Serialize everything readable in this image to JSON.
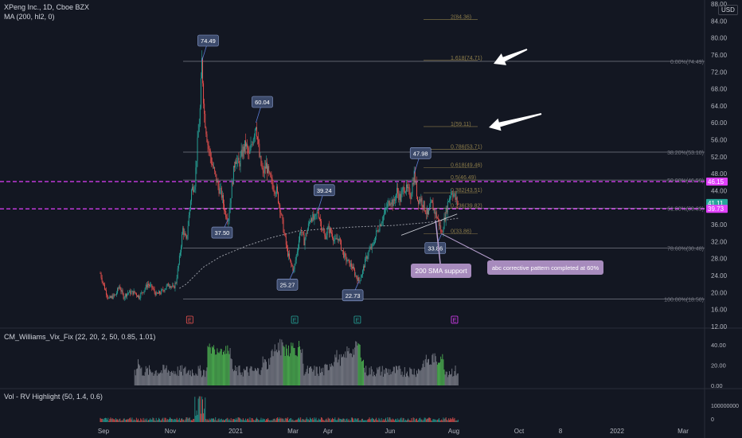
{
  "header": {
    "symbol_line": "XPeng Inc., 1D, Cboe BZX",
    "ma_line": "MA (200, hl2, 0)",
    "currency": "USD"
  },
  "panes": {
    "vix_label": "CM_Williams_Vix_Fix (22, 20, 2, 50, 0.85, 1.01)",
    "vol_label": "Vol - RV Highlight (50, 1.4, 0.6)"
  },
  "colors": {
    "up": "#26a69a",
    "down": "#ef5350",
    "magenta": "#e040fb",
    "vix_high": "#4caf50",
    "vix_normal": "#787b86",
    "ma": "#9598a1"
  },
  "chart_data": {
    "type": "line",
    "title": "XPeng Inc., 1D, Cboe BZX",
    "ylim": [
      12,
      88
    ],
    "y_ticks": [
      "88.00",
      "84.00",
      "80.00",
      "76.00",
      "72.00",
      "68.00",
      "64.00",
      "60.00",
      "56.00",
      "52.00",
      "48.00",
      "44.00",
      "40.00",
      "36.00",
      "32.00",
      "28.00",
      "24.00",
      "20.00",
      "16.00",
      "12.00"
    ],
    "x_ticks": [
      "Sep",
      "Nov",
      "2021",
      "Mar",
      "Apr",
      "Jun",
      "Aug",
      "Oct",
      "8",
      "2022",
      "Mar"
    ],
    "price_path": [
      [
        0,
        24.5
      ],
      [
        5,
        21
      ],
      [
        10,
        18.5
      ],
      [
        18,
        19.5
      ],
      [
        22,
        21.5
      ],
      [
        27,
        19
      ],
      [
        32,
        20
      ],
      [
        40,
        20
      ],
      [
        45,
        19
      ],
      [
        52,
        21
      ],
      [
        55,
        22
      ],
      [
        60,
        21.2
      ],
      [
        65,
        19.5
      ],
      [
        70,
        20
      ],
      [
        75,
        21
      ],
      [
        80,
        22
      ],
      [
        85,
        21
      ],
      [
        88,
        22.5
      ],
      [
        92,
        28
      ],
      [
        96,
        35
      ],
      [
        100,
        32
      ],
      [
        103,
        38
      ],
      [
        106,
        44
      ],
      [
        110,
        46
      ],
      [
        113,
        55
      ],
      [
        116,
        63
      ],
      [
        118,
        74.49
      ],
      [
        121,
        62
      ],
      [
        125,
        55
      ],
      [
        129,
        51
      ],
      [
        133,
        48
      ],
      [
        137,
        45
      ],
      [
        141,
        43
      ],
      [
        145,
        39
      ],
      [
        149,
        37.5
      ],
      [
        153,
        45
      ],
      [
        157,
        52
      ],
      [
        161,
        50
      ],
      [
        165,
        53
      ],
      [
        169,
        55
      ],
      [
        173,
        52
      ],
      [
        177,
        56
      ],
      [
        181,
        60.04
      ],
      [
        185,
        52
      ],
      [
        189,
        48
      ],
      [
        193,
        50
      ],
      [
        197,
        47
      ],
      [
        201,
        45
      ],
      [
        205,
        44
      ],
      [
        209,
        40
      ],
      [
        213,
        35
      ],
      [
        217,
        30
      ],
      [
        221,
        27
      ],
      [
        225,
        25.27
      ],
      [
        229,
        30
      ],
      [
        233,
        35
      ],
      [
        237,
        32
      ],
      [
        241,
        35
      ],
      [
        245,
        38
      ],
      [
        249,
        37
      ],
      [
        253,
        39.24
      ],
      [
        257,
        36
      ],
      [
        261,
        33
      ],
      [
        265,
        35
      ],
      [
        269,
        34
      ],
      [
        273,
        32
      ],
      [
        277,
        33
      ],
      [
        281,
        30
      ],
      [
        285,
        28
      ],
      [
        289,
        27
      ],
      [
        293,
        26
      ],
      [
        297,
        24
      ],
      [
        301,
        22.73
      ],
      [
        305,
        25
      ],
      [
        309,
        28
      ],
      [
        313,
        30
      ],
      [
        317,
        31
      ],
      [
        321,
        34
      ],
      [
        325,
        36
      ],
      [
        329,
        38
      ],
      [
        333,
        40
      ],
      [
        337,
        42
      ],
      [
        341,
        41
      ],
      [
        345,
        44
      ],
      [
        349,
        42
      ],
      [
        353,
        45
      ],
      [
        357,
        44
      ],
      [
        361,
        43
      ],
      [
        365,
        47.98
      ],
      [
        369,
        42
      ],
      [
        373,
        42
      ],
      [
        377,
        40
      ],
      [
        381,
        38
      ],
      [
        385,
        41
      ],
      [
        389,
        39
      ],
      [
        393,
        37
      ],
      [
        397,
        33.86
      ],
      [
        401,
        38
      ],
      [
        405,
        42
      ],
      [
        409,
        44
      ],
      [
        413,
        42
      ],
      [
        416,
        41.11
      ]
    ],
    "ma200": [
      [
        92,
        21
      ],
      [
        100,
        22
      ],
      [
        110,
        24
      ],
      [
        120,
        26
      ],
      [
        140,
        28.5
      ],
      [
        170,
        31
      ],
      [
        200,
        33
      ],
      [
        230,
        34.5
      ],
      [
        260,
        35
      ],
      [
        300,
        35.5
      ],
      [
        340,
        35.8
      ],
      [
        380,
        36.5
      ],
      [
        416,
        37.5
      ]
    ],
    "peak_labels": [
      {
        "x": 118,
        "y": 74.49,
        "text": "74.49",
        "anchor": "above"
      },
      {
        "x": 149,
        "y": 37.5,
        "text": "37.50",
        "anchor": "below"
      },
      {
        "x": 181,
        "y": 60.04,
        "text": "60.04",
        "anchor": "above"
      },
      {
        "x": 225,
        "y": 25.27,
        "text": "25.27",
        "anchor": "below"
      },
      {
        "x": 253,
        "y": 39.24,
        "text": "39.24",
        "anchor": "above"
      },
      {
        "x": 301,
        "y": 22.73,
        "text": "22.73",
        "anchor": "below"
      },
      {
        "x": 365,
        "y": 47.98,
        "text": "47.98",
        "anchor": "above"
      },
      {
        "x": 397,
        "y": 33.86,
        "text": "33.86",
        "anchor": "below"
      }
    ],
    "fib_retracement_levels": [
      {
        "value": 74.49,
        "label": "0.00%(74.49)"
      },
      {
        "value": 53.1,
        "label": "38.20%(53.10)"
      },
      {
        "value": 46.5,
        "label": "50.00%(46.50)"
      },
      {
        "value": 39.89,
        "label": "61.80%(39.89)"
      },
      {
        "value": 30.48,
        "label": "78.60%(30.48)"
      },
      {
        "value": 18.5,
        "label": "100.00%(18.50)"
      }
    ],
    "fib_extension_levels": [
      {
        "value": 84.36,
        "label": "2(84.36)"
      },
      {
        "value": 74.71,
        "label": "1.618(74.71)"
      },
      {
        "value": 59.11,
        "label": "1(59.11)"
      },
      {
        "value": 53.71,
        "label": "0.786(53.71)"
      },
      {
        "value": 49.46,
        "label": "0.618(49.46)"
      },
      {
        "value": 46.49,
        "label": "0.5(46.49)"
      },
      {
        "value": 43.51,
        "label": "0.382(43.51)"
      },
      {
        "value": 39.82,
        "label": "0.236(39.82)"
      },
      {
        "value": 33.86,
        "label": "0(33.86)"
      }
    ],
    "horizontal_levels": [
      46.15,
      39.73
    ],
    "price_axis_badges": [
      {
        "value": 46.15,
        "text": "46.15",
        "color": "#e040fb"
      },
      {
        "value": 41.11,
        "text": "41.11",
        "sub": "02:20:42",
        "color": "#26a69a"
      },
      {
        "value": 39.73,
        "text": "39.73",
        "color": "#e040fb"
      }
    ],
    "annotations": [
      {
        "text": "200 SMA support"
      },
      {
        "text": "abc corrective pattern completed at 60%"
      }
    ],
    "earnings_markers": [
      {
        "x": 104,
        "text": "E"
      },
      {
        "x": 226,
        "text": "E"
      },
      {
        "x": 299,
        "text": "E"
      },
      {
        "x": 412,
        "text": "E"
      }
    ],
    "vix_fix_yticks": [
      "40.00",
      "20.00",
      "0.00"
    ],
    "vol_yticks": [
      "100000000",
      "0"
    ]
  }
}
